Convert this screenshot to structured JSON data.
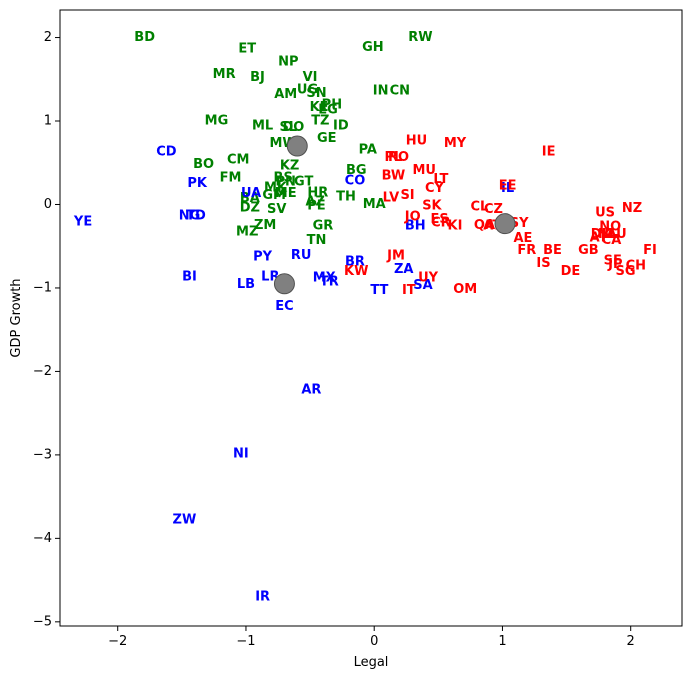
{
  "chart_data": {
    "type": "scatter",
    "title": "",
    "xlabel": "Legal",
    "ylabel": "GDP Growth",
    "xlim": [
      -2.45,
      2.4
    ],
    "ylim": [
      -5.05,
      2.33
    ],
    "xticks": [
      -2,
      -1,
      0,
      1,
      2
    ],
    "yticks": [
      -5,
      -4,
      -3,
      -2,
      -1,
      0,
      1,
      2
    ],
    "grid": false,
    "legend": "none",
    "colors": {
      "cluster_green": "#008000",
      "cluster_blue": "#0000ff",
      "cluster_red": "#ff0000",
      "centroid": "#808080"
    },
    "centroids": [
      {
        "x": -0.6,
        "y": 0.7
      },
      {
        "x": -0.7,
        "y": -0.95
      },
      {
        "x": 1.02,
        "y": -0.23
      }
    ],
    "series": [
      {
        "color": "#008000",
        "points": [
          {
            "label": "BD",
            "x": -1.79,
            "y": 2.0
          },
          {
            "label": "ET",
            "x": -0.99,
            "y": 1.86
          },
          {
            "label": "NP",
            "x": -0.67,
            "y": 1.71
          },
          {
            "label": "GH",
            "x": -0.01,
            "y": 1.88
          },
          {
            "label": "RW",
            "x": 0.36,
            "y": 2.0
          },
          {
            "label": "MR",
            "x": -1.17,
            "y": 1.56
          },
          {
            "label": "BJ",
            "x": -0.91,
            "y": 1.52
          },
          {
            "label": "VI",
            "x": -0.5,
            "y": 1.52
          },
          {
            "label": "IN",
            "x": 0.05,
            "y": 1.36
          },
          {
            "label": "CN",
            "x": 0.2,
            "y": 1.36
          },
          {
            "label": "AM",
            "x": -0.69,
            "y": 1.32
          },
          {
            "label": "UG",
            "x": -0.52,
            "y": 1.37
          },
          {
            "label": "SN",
            "x": -0.45,
            "y": 1.33
          },
          {
            "label": "PH",
            "x": -0.33,
            "y": 1.19
          },
          {
            "label": "KE",
            "x": -0.43,
            "y": 1.16
          },
          {
            "label": "EG",
            "x": -0.36,
            "y": 1.13
          },
          {
            "label": "TZ",
            "x": -0.42,
            "y": 1.0
          },
          {
            "label": "MG",
            "x": -1.23,
            "y": 1.0
          },
          {
            "label": "ML",
            "x": -0.87,
            "y": 0.94
          },
          {
            "label": "GE",
            "x": -0.37,
            "y": 0.79
          },
          {
            "label": "ID",
            "x": -0.26,
            "y": 0.94
          },
          {
            "label": "DO",
            "x": -0.63,
            "y": 0.92
          },
          {
            "label": "SL",
            "x": -0.67,
            "y": 0.92
          },
          {
            "label": "MW",
            "x": -0.71,
            "y": 0.73
          },
          {
            "label": "PA",
            "x": -0.05,
            "y": 0.65
          },
          {
            "label": "BO",
            "x": -1.33,
            "y": 0.48
          },
          {
            "label": "CM",
            "x": -1.06,
            "y": 0.53
          },
          {
            "label": "KZ",
            "x": -0.66,
            "y": 0.46
          },
          {
            "label": "FM",
            "x": -1.12,
            "y": 0.32
          },
          {
            "label": "BG",
            "x": -0.14,
            "y": 0.41
          },
          {
            "label": "RS",
            "x": -0.71,
            "y": 0.32
          },
          {
            "label": "MK",
            "x": -0.77,
            "y": 0.2
          },
          {
            "label": "PN",
            "x": -0.69,
            "y": 0.27
          },
          {
            "label": "GT",
            "x": -0.55,
            "y": 0.27
          },
          {
            "label": "HR",
            "x": -0.44,
            "y": 0.14
          },
          {
            "label": "GM",
            "x": -0.78,
            "y": 0.11
          },
          {
            "label": "ME",
            "x": -0.69,
            "y": 0.13
          },
          {
            "label": "BA",
            "x": -0.97,
            "y": 0.07
          },
          {
            "label": "TH",
            "x": -0.22,
            "y": 0.09
          },
          {
            "label": "AZ",
            "x": -0.46,
            "y": 0.03
          },
          {
            "label": "PE",
            "x": -0.45,
            "y": -0.02
          },
          {
            "label": "MA",
            "x": 0.0,
            "y": 0.0
          },
          {
            "label": "DZ",
            "x": -0.97,
            "y": -0.04
          },
          {
            "label": "SV",
            "x": -0.76,
            "y": -0.06
          },
          {
            "label": "ZM",
            "x": -0.85,
            "y": -0.25
          },
          {
            "label": "MZ",
            "x": -0.99,
            "y": -0.33
          },
          {
            "label": "GR",
            "x": -0.4,
            "y": -0.26
          },
          {
            "label": "TN",
            "x": -0.45,
            "y": -0.43
          }
        ]
      },
      {
        "color": "#0000ff",
        "points": [
          {
            "label": "CD",
            "x": -1.62,
            "y": 0.63
          },
          {
            "label": "PK",
            "x": -1.38,
            "y": 0.25
          },
          {
            "label": "CO",
            "x": -0.15,
            "y": 0.28
          },
          {
            "label": "UA",
            "x": -0.96,
            "y": 0.13
          },
          {
            "label": "YE",
            "x": -2.27,
            "y": -0.21
          },
          {
            "label": "NG",
            "x": -1.44,
            "y": -0.14
          },
          {
            "label": "TD",
            "x": -1.39,
            "y": -0.14
          },
          {
            "label": "IL",
            "x": 1.04,
            "y": 0.19
          },
          {
            "label": "BH",
            "x": 0.32,
            "y": -0.26
          },
          {
            "label": "PY",
            "x": -0.87,
            "y": -0.63
          },
          {
            "label": "RU",
            "x": -0.57,
            "y": -0.61
          },
          {
            "label": "BR",
            "x": -0.15,
            "y": -0.69
          },
          {
            "label": "ZA",
            "x": 0.23,
            "y": -0.78
          },
          {
            "label": "BI",
            "x": -1.44,
            "y": -0.87
          },
          {
            "label": "LR",
            "x": -0.81,
            "y": -0.87
          },
          {
            "label": "MX",
            "x": -0.39,
            "y": -0.88
          },
          {
            "label": "LB",
            "x": -1.0,
            "y": -0.96
          },
          {
            "label": "TR",
            "x": -0.35,
            "y": -0.93
          },
          {
            "label": "SA",
            "x": 0.38,
            "y": -0.97
          },
          {
            "label": "TT",
            "x": 0.04,
            "y": -1.03
          },
          {
            "label": "EC",
            "x": -0.7,
            "y": -1.22
          },
          {
            "label": "AR",
            "x": -0.49,
            "y": -2.22
          },
          {
            "label": "NI",
            "x": -1.04,
            "y": -2.99
          },
          {
            "label": "ZW",
            "x": -1.48,
            "y": -3.78
          },
          {
            "label": "IR",
            "x": -0.87,
            "y": -4.7
          }
        ]
      },
      {
        "color": "#ff0000",
        "points": [
          {
            "label": "HU",
            "x": 0.33,
            "y": 0.76
          },
          {
            "label": "MY",
            "x": 0.63,
            "y": 0.73
          },
          {
            "label": "IE",
            "x": 1.36,
            "y": 0.63
          },
          {
            "label": "RO",
            "x": 0.19,
            "y": 0.56
          },
          {
            "label": "PL",
            "x": 0.15,
            "y": 0.56
          },
          {
            "label": "MU",
            "x": 0.39,
            "y": 0.41
          },
          {
            "label": "BW",
            "x": 0.15,
            "y": 0.34
          },
          {
            "label": "LT",
            "x": 0.52,
            "y": 0.3
          },
          {
            "label": "CY",
            "x": 0.47,
            "y": 0.19
          },
          {
            "label": "EE",
            "x": 1.04,
            "y": 0.22
          },
          {
            "label": "SI",
            "x": 0.26,
            "y": 0.11
          },
          {
            "label": "LV",
            "x": 0.13,
            "y": 0.08
          },
          {
            "label": "SK",
            "x": 0.45,
            "y": -0.02
          },
          {
            "label": "CL",
            "x": 0.82,
            "y": -0.03
          },
          {
            "label": "CZ",
            "x": 0.93,
            "y": -0.06
          },
          {
            "label": "NZ",
            "x": 2.01,
            "y": -0.05
          },
          {
            "label": "US",
            "x": 1.8,
            "y": -0.1
          },
          {
            "label": "JO",
            "x": 0.3,
            "y": -0.15
          },
          {
            "label": "ES",
            "x": 0.51,
            "y": -0.18
          },
          {
            "label": "CR",
            "x": 0.52,
            "y": -0.22
          },
          {
            "label": "KI",
            "x": 0.63,
            "y": -0.26
          },
          {
            "label": "QA",
            "x": 0.86,
            "y": -0.25
          },
          {
            "label": "AT",
            "x": 0.92,
            "y": -0.26
          },
          {
            "label": "SY",
            "x": 1.13,
            "y": -0.23
          },
          {
            "label": "NO",
            "x": 1.84,
            "y": -0.27
          },
          {
            "label": "AE",
            "x": 1.16,
            "y": -0.41
          },
          {
            "label": "AU",
            "x": 1.89,
            "y": -0.36
          },
          {
            "label": "DK",
            "x": 1.77,
            "y": -0.36
          },
          {
            "label": "NL",
            "x": 1.82,
            "y": -0.36
          },
          {
            "label": "FR",
            "x": 1.19,
            "y": -0.55
          },
          {
            "label": "BE",
            "x": 1.39,
            "y": -0.55
          },
          {
            "label": "GB",
            "x": 1.67,
            "y": -0.55
          },
          {
            "label": "FI",
            "x": 2.15,
            "y": -0.55
          },
          {
            "label": "AT",
            "x": 1.75,
            "y": -0.4
          },
          {
            "label": "CA",
            "x": 1.85,
            "y": -0.43
          },
          {
            "label": "JM",
            "x": 0.17,
            "y": -0.62
          },
          {
            "label": "SE",
            "x": 1.86,
            "y": -0.68
          },
          {
            "label": "JP",
            "x": 1.88,
            "y": -0.72
          },
          {
            "label": "IS",
            "x": 1.32,
            "y": -0.71
          },
          {
            "label": "CH",
            "x": 2.04,
            "y": -0.74
          },
          {
            "label": "SG",
            "x": 1.96,
            "y": -0.8
          },
          {
            "label": "DE",
            "x": 1.53,
            "y": -0.8
          },
          {
            "label": "KW",
            "x": -0.14,
            "y": -0.8
          },
          {
            "label": "UY",
            "x": 0.42,
            "y": -0.88
          },
          {
            "label": "IT",
            "x": 0.27,
            "y": -1.03
          },
          {
            "label": "OM",
            "x": 0.71,
            "y": -1.02
          }
        ]
      }
    ]
  }
}
